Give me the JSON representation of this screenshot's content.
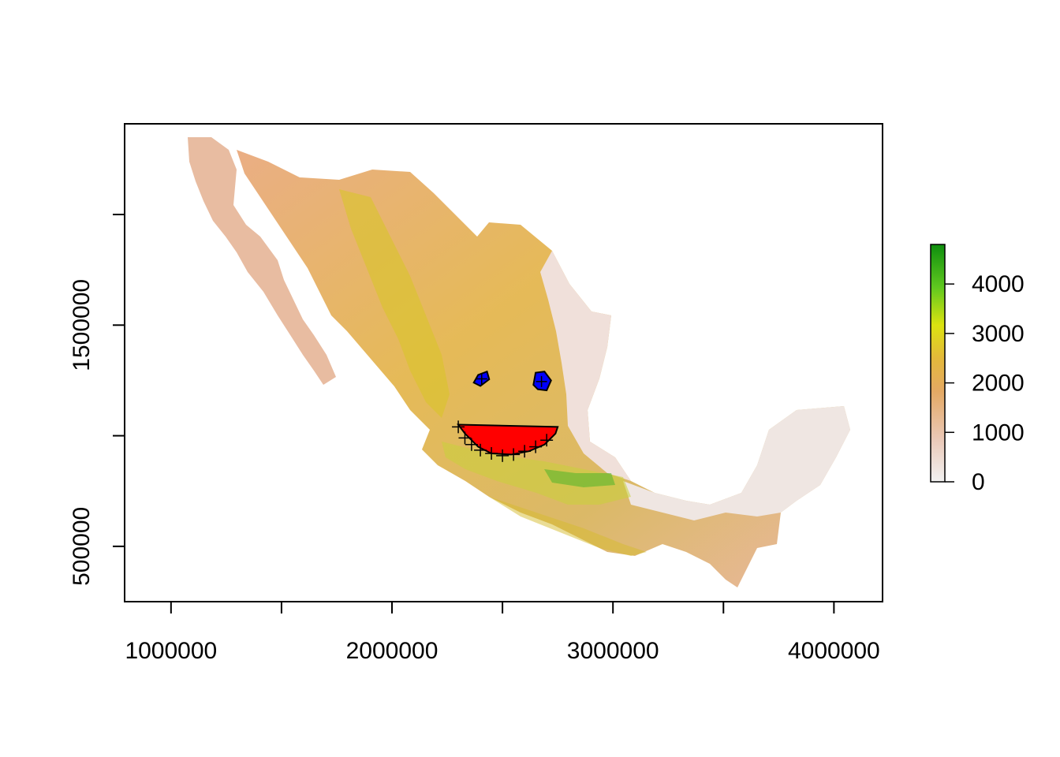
{
  "map": {
    "x_ticks": [
      "1000000",
      "2000000",
      "3000000",
      "4000000"
    ],
    "y_ticks": [
      "500000",
      "1500000"
    ],
    "x_range": [
      790000,
      4220000
    ],
    "y_range": [
      250000,
      2410000
    ],
    "x_tick_values": [
      1000000,
      1500000,
      2000000,
      2500000,
      3000000,
      3500000,
      4000000
    ],
    "y_tick_values": [
      500000,
      1000000,
      1500000,
      2000000
    ]
  },
  "legend": {
    "labels": [
      "4000",
      "3000",
      "2000",
      "1000",
      "0"
    ],
    "values": [
      4000,
      3000,
      2000,
      1000,
      0
    ],
    "range": [
      0,
      4800
    ],
    "colors": [
      "#f2f2f2",
      "#eac8b7",
      "#e4a964",
      "#e3b83b",
      "#dce310",
      "#5fc81f",
      "#0e8e0e"
    ]
  },
  "overlays": {
    "eyes_color": "#0000ff",
    "mouth_color": "#ff0000",
    "outline_color": "#000000",
    "eyes": [
      [
        [
          2370000,
          1240000
        ],
        [
          2390000,
          1275000
        ],
        [
          2430000,
          1290000
        ],
        [
          2440000,
          1255000
        ],
        [
          2400000,
          1225000
        ]
      ],
      [
        [
          2640000,
          1230000
        ],
        [
          2650000,
          1285000
        ],
        [
          2690000,
          1290000
        ],
        [
          2720000,
          1250000
        ],
        [
          2700000,
          1205000
        ],
        [
          2660000,
          1210000
        ]
      ]
    ],
    "mouth": [
      [
        2300000,
        1050000
      ],
      [
        2750000,
        1040000
      ],
      [
        2740000,
        1010000
      ],
      [
        2690000,
        960000
      ],
      [
        2620000,
        930000
      ],
      [
        2540000,
        915000
      ],
      [
        2450000,
        920000
      ],
      [
        2390000,
        950000
      ],
      [
        2330000,
        1010000
      ]
    ],
    "mouth_points": [
      [
        2300000,
        1040000
      ],
      [
        2330000,
        990000
      ],
      [
        2360000,
        960000
      ],
      [
        2400000,
        935000
      ],
      [
        2450000,
        920000
      ],
      [
        2500000,
        910000
      ],
      [
        2550000,
        915000
      ],
      [
        2600000,
        930000
      ],
      [
        2650000,
        950000
      ],
      [
        2700000,
        980000
      ]
    ]
  }
}
